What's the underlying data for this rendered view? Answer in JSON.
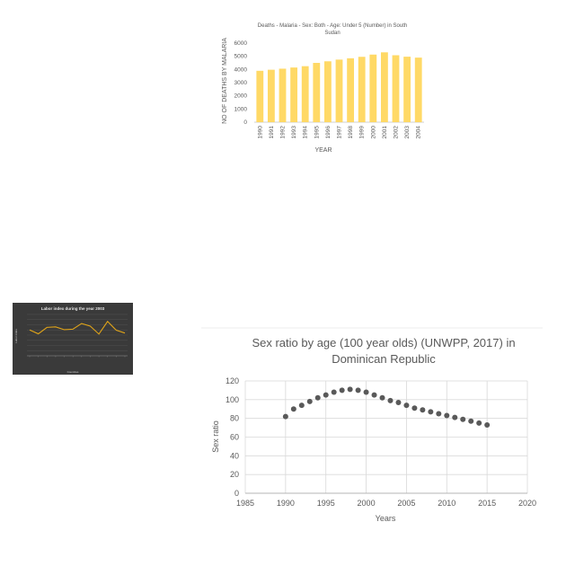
{
  "chart_data": [
    {
      "type": "bar",
      "title": "Deaths - Malaria - Sex: Both - Age: Under 5 (Number) in South Sudan",
      "title_lines": [
        "Deaths - Malaria - Sex: Both - Age: Under 5 (Number) in South",
        "Sudan"
      ],
      "xlabel": "YEAR",
      "ylabel": "NO OF DEATHS BY MALARIA",
      "categories": [
        "1990",
        "1991",
        "1992",
        "1993",
        "1994",
        "1995",
        "1996",
        "1997",
        "1998",
        "1999",
        "2000",
        "2001",
        "2002",
        "2003",
        "2004"
      ],
      "values": [
        3900,
        3980,
        4060,
        4150,
        4250,
        4500,
        4620,
        4750,
        4850,
        4960,
        5130,
        5300,
        5080,
        4970,
        4900
      ],
      "ylim": [
        0,
        6000
      ],
      "yticks": [
        "0",
        "1000",
        "2000",
        "3000",
        "4000",
        "5000",
        "6000"
      ],
      "bar_color": "#ffd966",
      "grid": false
    },
    {
      "type": "line",
      "title": "Labor index during the year 2003",
      "xlabel": "Countries",
      "ylabel": "Labor index",
      "values": [
        1000,
        850,
        1100,
        1120,
        1010,
        1030,
        1250,
        1150,
        840,
        1330,
        990,
        880
      ],
      "ylim": [
        0,
        1600
      ],
      "line_color": "#e0a419",
      "background": "#3a3a3a",
      "grid": true
    },
    {
      "type": "scatter",
      "title": "Sex ratio by age (100 year olds) (UNWPP, 2017) in Dominican Republic",
      "title_lines": [
        "Sex ratio by age (100 year olds) (UNWPP, 2017) in",
        "Dominican Republic"
      ],
      "xlabel": "Years",
      "ylabel": "Sex ratio",
      "x": [
        1990,
        1991,
        1992,
        1993,
        1994,
        1995,
        1996,
        1997,
        1998,
        1999,
        2000,
        2001,
        2002,
        2003,
        2004,
        2005,
        2006,
        2007,
        2008,
        2009,
        2010,
        2011,
        2012,
        2013,
        2014,
        2015
      ],
      "y": [
        82,
        90,
        94,
        98,
        102,
        105,
        108,
        110,
        111,
        110,
        108,
        105,
        102,
        99,
        97,
        94,
        91,
        89,
        87,
        85,
        83,
        81,
        79,
        77,
        75,
        73
      ],
      "xlim": [
        1985,
        2020
      ],
      "ylim": [
        0,
        120
      ],
      "xticks": [
        "1985",
        "1990",
        "1995",
        "2000",
        "2005",
        "2010",
        "2015",
        "2020"
      ],
      "yticks": [
        "0",
        "20",
        "40",
        "60",
        "80",
        "100",
        "120"
      ],
      "marker_color": "#595959",
      "grid": true
    }
  ]
}
